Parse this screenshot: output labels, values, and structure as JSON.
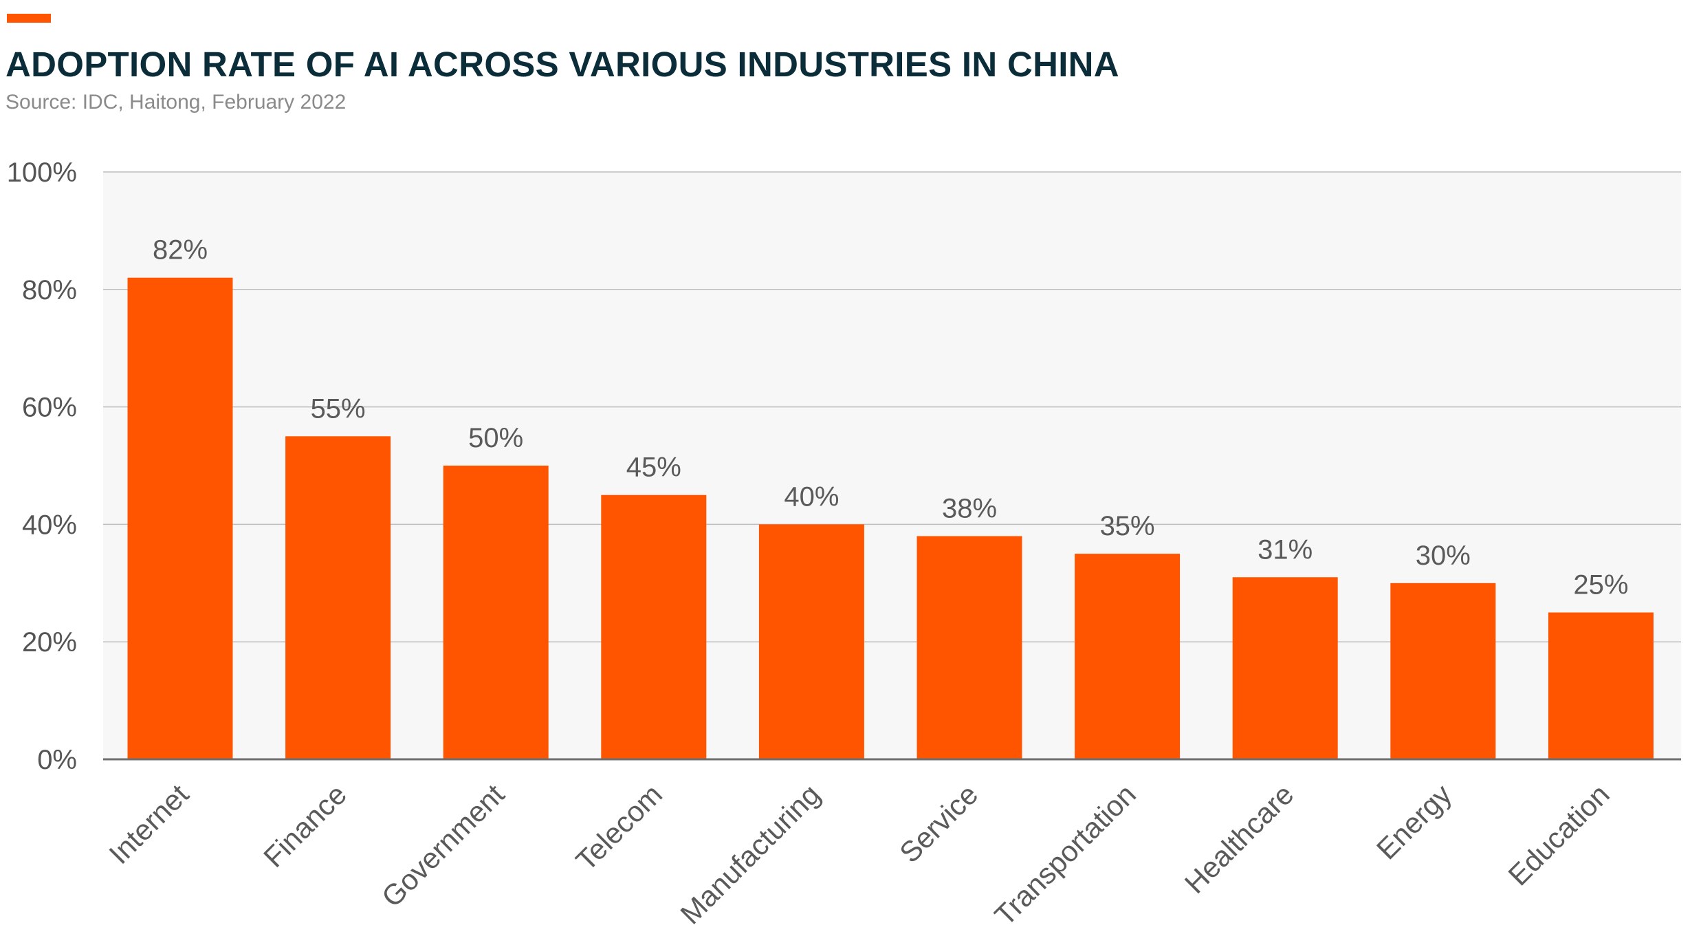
{
  "header": {
    "title": "ADOPTION RATE OF AI ACROSS VARIOUS INDUSTRIES IN CHINA",
    "source": "Source: IDC, Haitong, February 2022"
  },
  "colors": {
    "accent": "#FF5500",
    "bar": "#FF5500",
    "title": "#0B2D3A",
    "subtitle": "#8A8A8A",
    "plot_background": "#F7F7F7",
    "gridline": "#BDBDBD",
    "baseline": "#6E6E6E",
    "tick_text": "#555555",
    "label_text": "#5A5A5A"
  },
  "chart_data": {
    "type": "bar",
    "title": "ADOPTION RATE OF AI ACROSS VARIOUS INDUSTRIES IN CHINA",
    "subtitle": "Source: IDC, Haitong, February 2022",
    "xlabel": "",
    "ylabel": "",
    "categories": [
      "Internet",
      "Finance",
      "Government",
      "Telecom",
      "Manufacturing",
      "Service",
      "Transportation",
      "Healthcare",
      "Energy",
      "Education"
    ],
    "values": [
      82,
      55,
      50,
      45,
      40,
      38,
      35,
      31,
      30,
      25
    ],
    "data_labels": [
      "82%",
      "55%",
      "50%",
      "45%",
      "40%",
      "38%",
      "35%",
      "31%",
      "30%",
      "25%"
    ],
    "ylim": [
      0,
      100
    ],
    "yticks": [
      0,
      20,
      40,
      60,
      80,
      100
    ],
    "ytick_labels": [
      "0%",
      "20%",
      "40%",
      "60%",
      "80%",
      "100%"
    ],
    "grid": true,
    "legend": "none"
  }
}
